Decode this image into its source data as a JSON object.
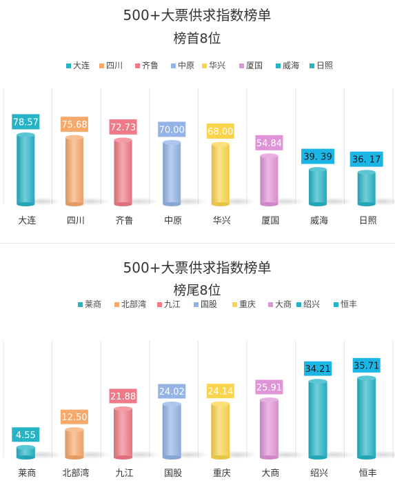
{
  "chart_data": [
    {
      "type": "bar",
      "title": "500+大票供求指数榜单",
      "subtitle": "榜首8位",
      "categories": [
        "大连",
        "四川",
        "齐鲁",
        "中原",
        "华兴",
        "厦国",
        "威海",
        "日照"
      ],
      "values": [
        78.57,
        75.68,
        72.73,
        70.0,
        68.0,
        54.84,
        39.39,
        36.17
      ],
      "data_labels": [
        "78.57",
        "75.68",
        "72.73",
        "70.00",
        "68.00",
        "54.84",
        "39. 39",
        "36. 17"
      ],
      "colors": [
        "#26b3c6",
        "#f7a86b",
        "#f07a87",
        "#94b3e6",
        "#fbd44c",
        "#e094d8",
        "#26b3c6",
        "#26b3c6"
      ],
      "label_colors": [
        "#26b3c6",
        "#f7a86b",
        "#f07a87",
        "#94b3e6",
        "#fbd44c",
        "#e094d8",
        "#1bb6e6",
        "#1bb6e6"
      ],
      "ylim": [
        0,
        100
      ],
      "legend_position": "top",
      "grid": "vertical"
    },
    {
      "type": "bar",
      "title": "500+大票供求指数榜单",
      "subtitle": "榜尾8位",
      "categories": [
        "莱商",
        "北部湾",
        "九江",
        "国股",
        "重庆",
        "大商",
        "绍兴",
        "恒丰"
      ],
      "values": [
        4.55,
        12.5,
        21.88,
        24.02,
        24.14,
        25.91,
        34.21,
        35.71
      ],
      "data_labels": [
        "4.55",
        "12.50",
        "21.88",
        "24.02",
        "24.14",
        "25.91",
        "34.21",
        "35.71"
      ],
      "colors": [
        "#26b3c6",
        "#f7a86b",
        "#f07a87",
        "#94b3e6",
        "#fbd44c",
        "#e094d8",
        "#26b3c6",
        "#26b3c6"
      ],
      "label_colors": [
        "#26b3c6",
        "#f7a86b",
        "#f07a87",
        "#94b3e6",
        "#fbd44c",
        "#e094d8",
        "#1bb6e6",
        "#1bb6e6"
      ],
      "ylim": [
        0,
        40
      ],
      "legend_position": "top",
      "grid": "vertical"
    }
  ]
}
